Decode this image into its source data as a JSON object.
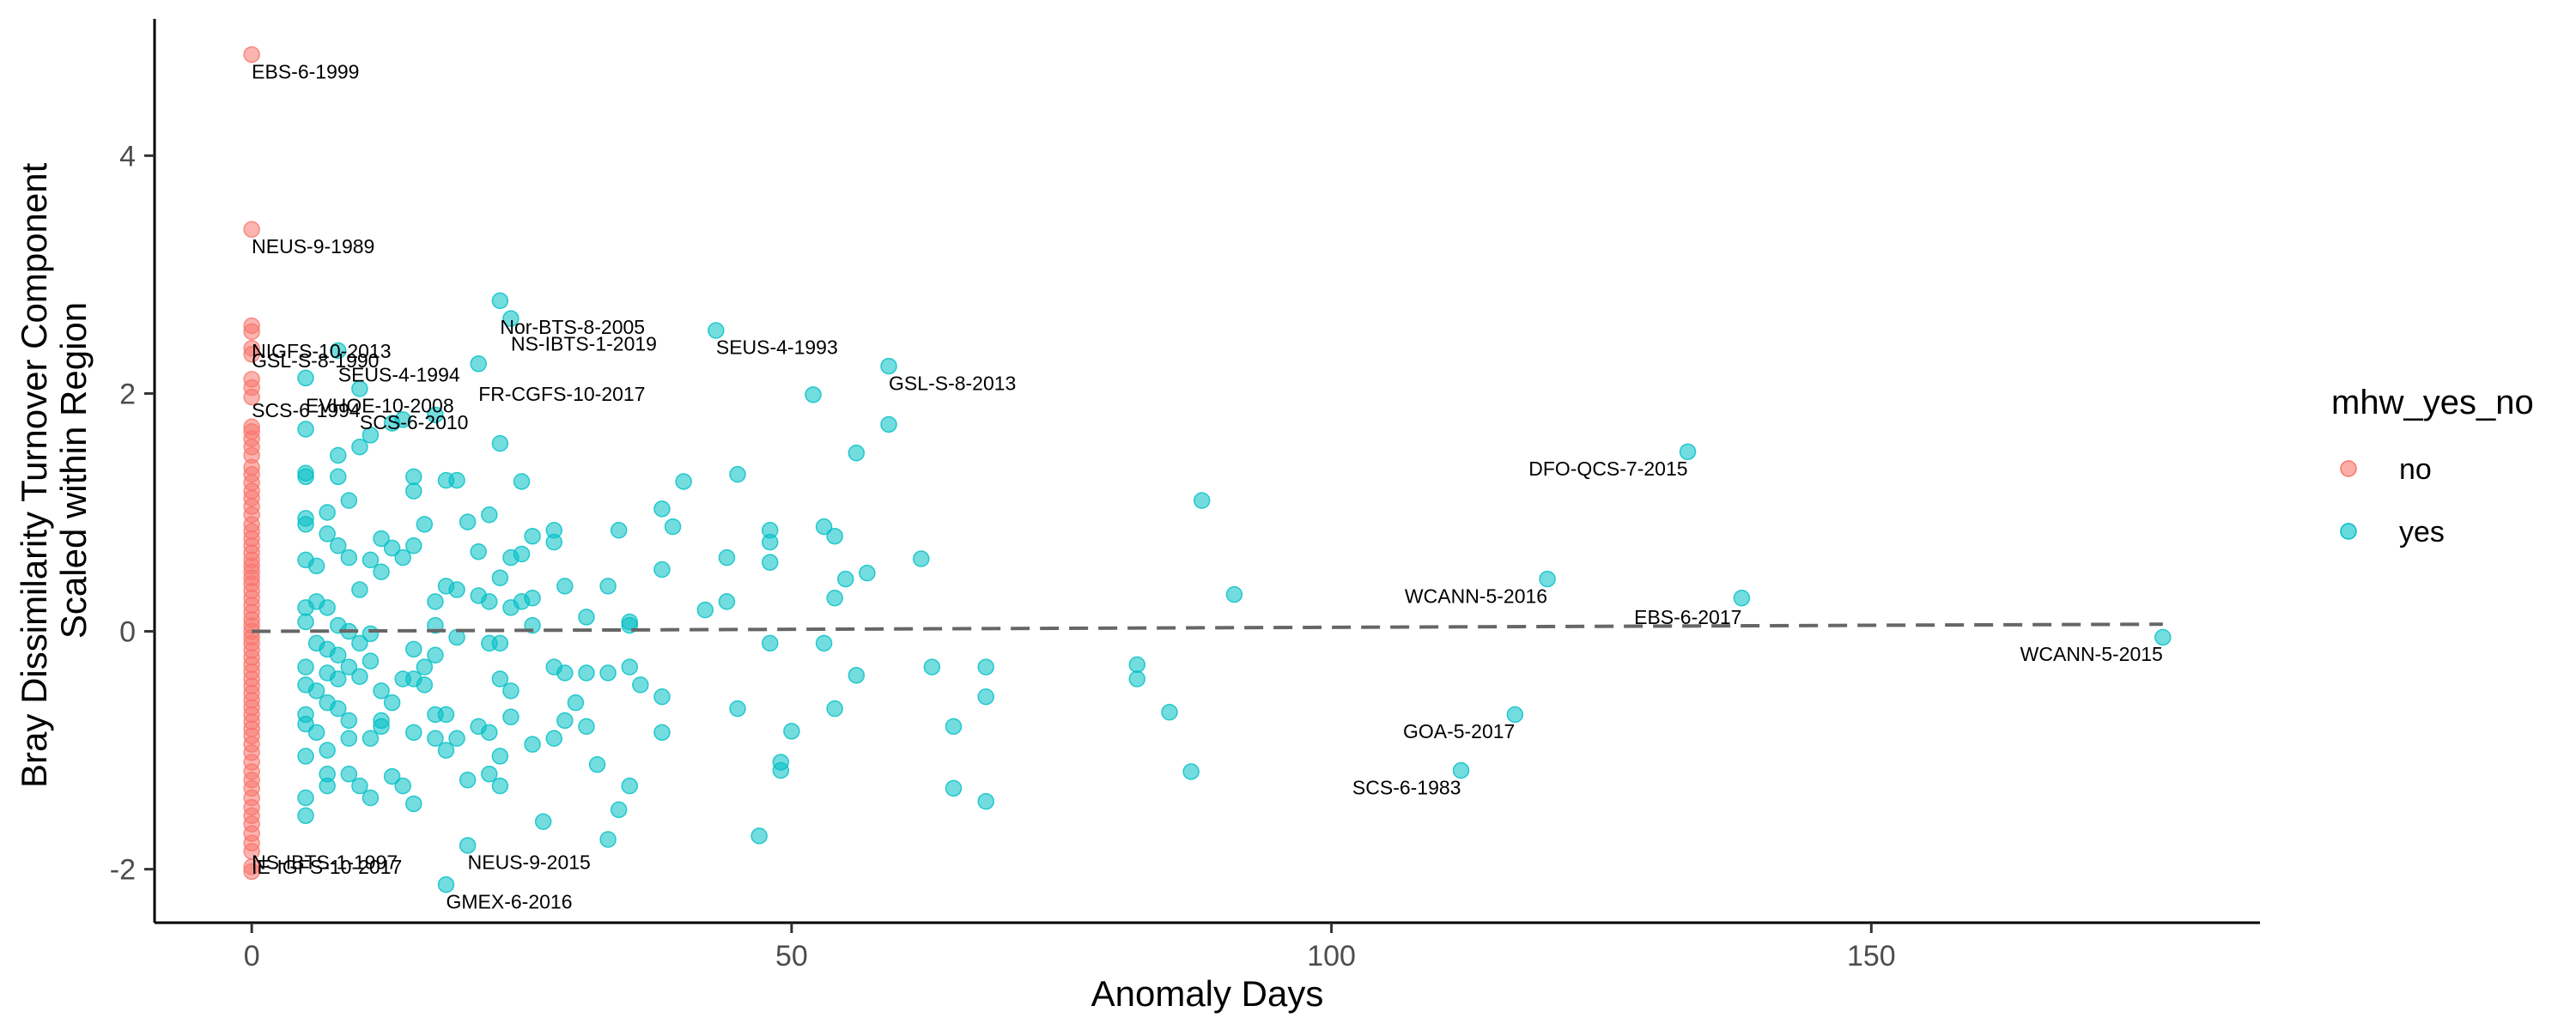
{
  "chart_data": {
    "type": "scatter",
    "title": "",
    "xlabel": "Anomaly Days",
    "ylabel_lines": [
      "Bray Dissimilarity Turnover Component",
      "Scaled within Region"
    ],
    "xlim": [
      -9,
      186
    ],
    "ylim": [
      -2.45,
      5.15
    ],
    "x_ticks": [
      0,
      50,
      100,
      150
    ],
    "y_ticks": [
      -2,
      0,
      2,
      4
    ],
    "grid": false,
    "legend": {
      "title": "mhw_yes_no",
      "position": "right"
    },
    "trend_line": {
      "style": "dashed",
      "color": "#666666",
      "points": [
        [
          0,
          0.0
        ],
        [
          177,
          0.06
        ]
      ]
    },
    "series": [
      {
        "name": "no",
        "color": "#F8766D",
        "points": [
          [
            0,
            4.85
          ],
          [
            0,
            3.38
          ],
          [
            0,
            2.57
          ],
          [
            0,
            2.52
          ],
          [
            0,
            2.38
          ],
          [
            0,
            2.33
          ],
          [
            0,
            2.12
          ],
          [
            0,
            2.05
          ],
          [
            0,
            1.97
          ],
          [
            0,
            1.72
          ],
          [
            0,
            1.68
          ],
          [
            0,
            1.62
          ],
          [
            0,
            1.55
          ],
          [
            0,
            1.48
          ],
          [
            0,
            1.38
          ],
          [
            0,
            1.32
          ],
          [
            0,
            1.25
          ],
          [
            0,
            1.18
          ],
          [
            0,
            1.12
          ],
          [
            0,
            1.05
          ],
          [
            0,
            0.98
          ],
          [
            0,
            0.9
          ],
          [
            0,
            0.84
          ],
          [
            0,
            0.78
          ],
          [
            0,
            0.72
          ],
          [
            0,
            0.66
          ],
          [
            0,
            0.6
          ],
          [
            0,
            0.55
          ],
          [
            0,
            0.5
          ],
          [
            0,
            0.45
          ],
          [
            0,
            0.4
          ],
          [
            0,
            0.34
          ],
          [
            0,
            0.28
          ],
          [
            0,
            0.22
          ],
          [
            0,
            0.16
          ],
          [
            0,
            0.1
          ],
          [
            0,
            0.05
          ],
          [
            0,
            0.0
          ],
          [
            0,
            -0.05
          ],
          [
            0,
            -0.1
          ],
          [
            0,
            -0.16
          ],
          [
            0,
            -0.22
          ],
          [
            0,
            -0.28
          ],
          [
            0,
            -0.34
          ],
          [
            0,
            -0.4
          ],
          [
            0,
            -0.46
          ],
          [
            0,
            -0.52
          ],
          [
            0,
            -0.58
          ],
          [
            0,
            -0.64
          ],
          [
            0,
            -0.7
          ],
          [
            0,
            -0.76
          ],
          [
            0,
            -0.82
          ],
          [
            0,
            -0.88
          ],
          [
            0,
            -0.95
          ],
          [
            0,
            -1.02
          ],
          [
            0,
            -1.1
          ],
          [
            0,
            -1.18
          ],
          [
            0,
            -1.25
          ],
          [
            0,
            -1.32
          ],
          [
            0,
            -1.4
          ],
          [
            0,
            -1.48
          ],
          [
            0,
            -1.55
          ],
          [
            0,
            -1.62
          ],
          [
            0,
            -1.7
          ],
          [
            0,
            -1.78
          ],
          [
            0,
            -1.85
          ],
          [
            0,
            -1.98
          ],
          [
            0,
            -2.02
          ]
        ]
      },
      {
        "name": "yes",
        "color": "#00BFC4",
        "points": [
          [
            5,
            2.13
          ],
          [
            5,
            1.7
          ],
          [
            5,
            1.33
          ],
          [
            5,
            1.3
          ],
          [
            5,
            0.95
          ],
          [
            5,
            0.9
          ],
          [
            5,
            0.6
          ],
          [
            5,
            0.2
          ],
          [
            5,
            0.08
          ],
          [
            5,
            -0.3
          ],
          [
            5,
            -0.45
          ],
          [
            5,
            -0.7
          ],
          [
            5,
            -0.78
          ],
          [
            5,
            -1.05
          ],
          [
            5,
            -1.4
          ],
          [
            5,
            -1.55
          ],
          [
            6,
            0.55
          ],
          [
            6,
            0.25
          ],
          [
            6,
            -0.1
          ],
          [
            6,
            -0.5
          ],
          [
            6,
            -0.85
          ],
          [
            7,
            1.0
          ],
          [
            7,
            0.82
          ],
          [
            7,
            0.2
          ],
          [
            7,
            -0.15
          ],
          [
            7,
            -0.35
          ],
          [
            7,
            -0.6
          ],
          [
            7,
            -1.0
          ],
          [
            7,
            -1.2
          ],
          [
            7,
            -1.3
          ],
          [
            8,
            2.36
          ],
          [
            8,
            1.48
          ],
          [
            8,
            1.3
          ],
          [
            8,
            0.72
          ],
          [
            8,
            0.05
          ],
          [
            8,
            -0.2
          ],
          [
            8,
            -0.4
          ],
          [
            8,
            -0.65
          ],
          [
            9,
            1.1
          ],
          [
            9,
            0.62
          ],
          [
            9,
            0.0
          ],
          [
            9,
            -0.3
          ],
          [
            9,
            -0.75
          ],
          [
            9,
            -0.9
          ],
          [
            9,
            -1.2
          ],
          [
            10,
            2.04
          ],
          [
            10,
            1.55
          ],
          [
            10,
            0.35
          ],
          [
            10,
            -0.1
          ],
          [
            10,
            -0.38
          ],
          [
            10,
            -1.3
          ],
          [
            11,
            1.65
          ],
          [
            11,
            0.6
          ],
          [
            11,
            -0.02
          ],
          [
            11,
            -0.25
          ],
          [
            11,
            -0.9
          ],
          [
            11,
            -1.4
          ],
          [
            12,
            0.78
          ],
          [
            12,
            0.5
          ],
          [
            12,
            -0.5
          ],
          [
            12,
            -0.75
          ],
          [
            12,
            -0.8
          ],
          [
            13,
            1.75
          ],
          [
            13,
            0.7
          ],
          [
            13,
            -0.6
          ],
          [
            13,
            -1.22
          ],
          [
            14,
            1.78
          ],
          [
            14,
            0.62
          ],
          [
            14,
            -0.4
          ],
          [
            14,
            -1.3
          ],
          [
            15,
            1.3
          ],
          [
            15,
            1.18
          ],
          [
            15,
            0.72
          ],
          [
            15,
            -0.15
          ],
          [
            15,
            -0.4
          ],
          [
            15,
            -0.85
          ],
          [
            15,
            -1.45
          ],
          [
            16,
            0.9
          ],
          [
            16,
            -0.3
          ],
          [
            16,
            -0.45
          ],
          [
            17,
            1.82
          ],
          [
            17,
            0.25
          ],
          [
            17,
            0.05
          ],
          [
            17,
            -0.2
          ],
          [
            17,
            -0.7
          ],
          [
            17,
            -0.9
          ],
          [
            18,
            1.27
          ],
          [
            18,
            0.38
          ],
          [
            18,
            -0.7
          ],
          [
            18,
            -1.0
          ],
          [
            18,
            -2.13
          ],
          [
            19,
            1.27
          ],
          [
            19,
            0.35
          ],
          [
            19,
            -0.05
          ],
          [
            19,
            -0.9
          ],
          [
            20,
            0.92
          ],
          [
            20,
            -1.25
          ],
          [
            20,
            -1.8
          ],
          [
            21,
            2.25
          ],
          [
            21,
            0.67
          ],
          [
            21,
            0.3
          ],
          [
            21,
            -0.8
          ],
          [
            22,
            0.98
          ],
          [
            22,
            0.25
          ],
          [
            22,
            -0.1
          ],
          [
            22,
            -0.85
          ],
          [
            22,
            -1.2
          ],
          [
            23,
            2.78
          ],
          [
            23,
            1.58
          ],
          [
            23,
            0.45
          ],
          [
            23,
            -0.1
          ],
          [
            23,
            -0.4
          ],
          [
            23,
            -1.05
          ],
          [
            23,
            -1.3
          ],
          [
            24,
            2.63
          ],
          [
            24,
            0.62
          ],
          [
            24,
            0.2
          ],
          [
            24,
            -0.5
          ],
          [
            24,
            -0.72
          ],
          [
            25,
            1.26
          ],
          [
            25,
            0.65
          ],
          [
            25,
            0.25
          ],
          [
            26,
            0.8
          ],
          [
            26,
            0.28
          ],
          [
            26,
            0.05
          ],
          [
            26,
            -0.95
          ],
          [
            27,
            -1.6
          ],
          [
            28,
            0.85
          ],
          [
            28,
            0.75
          ],
          [
            28,
            -0.3
          ],
          [
            28,
            -0.9
          ],
          [
            29,
            0.38
          ],
          [
            29,
            -0.35
          ],
          [
            29,
            -0.75
          ],
          [
            30,
            -0.6
          ],
          [
            31,
            0.12
          ],
          [
            31,
            -0.35
          ],
          [
            31,
            -0.8
          ],
          [
            32,
            -1.12
          ],
          [
            33,
            0.38
          ],
          [
            33,
            -0.35
          ],
          [
            33,
            -1.75
          ],
          [
            34,
            0.85
          ],
          [
            34,
            -1.5
          ],
          [
            35,
            0.08
          ],
          [
            35,
            0.05
          ],
          [
            35,
            -0.3
          ],
          [
            35,
            -1.3
          ],
          [
            36,
            -0.45
          ],
          [
            38,
            1.03
          ],
          [
            38,
            0.52
          ],
          [
            38,
            -0.55
          ],
          [
            38,
            -0.85
          ],
          [
            39,
            0.88
          ],
          [
            40,
            1.26
          ],
          [
            42,
            0.18
          ],
          [
            43,
            2.53
          ],
          [
            44,
            0.62
          ],
          [
            44,
            0.25
          ],
          [
            45,
            1.32
          ],
          [
            45,
            -0.65
          ],
          [
            47,
            -1.72
          ],
          [
            48,
            0.85
          ],
          [
            48,
            0.75
          ],
          [
            48,
            0.58
          ],
          [
            48,
            -0.1
          ],
          [
            49,
            -1.1
          ],
          [
            49,
            -1.17
          ],
          [
            50,
            -0.84
          ],
          [
            52,
            1.99
          ],
          [
            53,
            0.88
          ],
          [
            53,
            -0.1
          ],
          [
            54,
            0.8
          ],
          [
            54,
            0.28
          ],
          [
            54,
            -0.65
          ],
          [
            55,
            0.44
          ],
          [
            56,
            1.5
          ],
          [
            56,
            -0.37
          ],
          [
            57,
            0.49
          ],
          [
            59,
            2.23
          ],
          [
            59,
            1.74
          ],
          [
            62,
            0.61
          ],
          [
            63,
            -0.3
          ],
          [
            65,
            -0.8
          ],
          [
            65,
            -1.32
          ],
          [
            68,
            -0.3
          ],
          [
            68,
            -0.55
          ],
          [
            68,
            -1.43
          ],
          [
            82,
            -0.28
          ],
          [
            82,
            -0.4
          ],
          [
            85,
            -0.68
          ],
          [
            87,
            -1.18
          ],
          [
            88,
            1.1
          ],
          [
            91,
            0.31
          ],
          [
            112,
            -1.17
          ],
          [
            117,
            -0.7
          ],
          [
            120,
            0.44
          ],
          [
            133,
            1.51
          ],
          [
            138,
            0.28
          ],
          [
            177,
            -0.05
          ]
        ]
      }
    ],
    "annotations": [
      {
        "text": "EBS-6-1999",
        "x": 0,
        "y": 4.65,
        "anchor": "start"
      },
      {
        "text": "NEUS-9-1989",
        "x": 0,
        "y": 3.18,
        "anchor": "start"
      },
      {
        "text": "NIGFS-10-2013",
        "x": 0,
        "y": 2.3,
        "anchor": "start"
      },
      {
        "text": "GSL-S-8-1990",
        "x": 0,
        "y": 2.22,
        "anchor": "start"
      },
      {
        "text": "SEUS-4-1994",
        "x": 8,
        "y": 2.1,
        "anchor": "start"
      },
      {
        "text": "SCS-6-1994",
        "x": 0,
        "y": 1.8,
        "anchor": "start"
      },
      {
        "text": "EVHOE-10-2008",
        "x": 5,
        "y": 1.84,
        "anchor": "start"
      },
      {
        "text": "SCS-6-2010",
        "x": 10,
        "y": 1.7,
        "anchor": "start"
      },
      {
        "text": "Nor-BTS-8-2005",
        "x": 23,
        "y": 2.5,
        "anchor": "start"
      },
      {
        "text": "NS-IBTS-1-2019",
        "x": 24,
        "y": 2.36,
        "anchor": "start"
      },
      {
        "text": "FR-CGFS-10-2017",
        "x": 21,
        "y": 1.94,
        "anchor": "start"
      },
      {
        "text": "SEUS-4-1993",
        "x": 43,
        "y": 2.33,
        "anchor": "start"
      },
      {
        "text": "GSL-S-8-2013",
        "x": 59,
        "y": 2.03,
        "anchor": "start"
      },
      {
        "text": "DFO-QCS-7-2015",
        "x": 133,
        "y": 1.31,
        "anchor": "end"
      },
      {
        "text": "WCANN-5-2016",
        "x": 120,
        "y": 0.24,
        "anchor": "end"
      },
      {
        "text": "EBS-6-2017",
        "x": 138,
        "y": 0.06,
        "anchor": "end"
      },
      {
        "text": "WCANN-5-2015",
        "x": 177,
        "y": -0.25,
        "anchor": "end"
      },
      {
        "text": "GOA-5-2017",
        "x": 117,
        "y": -0.9,
        "anchor": "end"
      },
      {
        "text": "SCS-6-1983",
        "x": 112,
        "y": -1.37,
        "anchor": "end"
      },
      {
        "text": "NS-IBTS-1-1997",
        "x": 0,
        "y": -2.0,
        "anchor": "start"
      },
      {
        "text": "IE-IGFS-10-2017",
        "x": 0,
        "y": -2.04,
        "anchor": "start"
      },
      {
        "text": "NEUS-9-2015",
        "x": 20,
        "y": -2.0,
        "anchor": "start"
      },
      {
        "text": "GMEX-6-2016",
        "x": 18,
        "y": -2.33,
        "anchor": "start"
      }
    ]
  }
}
